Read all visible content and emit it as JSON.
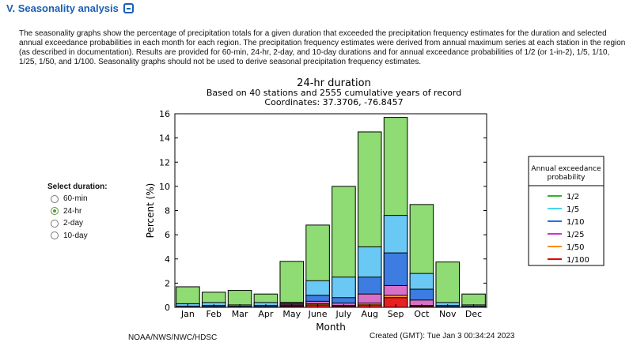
{
  "section": {
    "title": "V. Seasonality analysis"
  },
  "description": "The seasonality graphs show the percentage of precipitation totals for a given duration that exceeded the precipitation frequency estimates for the duration and selected annual exceedance probabilities in each month for each region. The precipitation frequency estimates were derived from annual maximum series at each station in the region (as described in documentation). Results are provided for 60-min, 24-hr, 2-day, and 10-day durations and for annual exceedance probabilities of 1/2 (or 1-in-2), 1/5, 1/10, 1/25, 1/50, and 1/100. Seasonality graphs should not be used to derive seasonal precipitation frequency estimates.",
  "duration_select": {
    "label": "Select duration:",
    "options": [
      "60-min",
      "24-hr",
      "2-day",
      "10-day"
    ],
    "selected": "24-hr"
  },
  "footer": {
    "left": "NOAA/NWS/NWC/HDSC",
    "right": "Created (GMT): Tue Jan  3 00:34:24 2023"
  },
  "chart_data": {
    "type": "bar",
    "title": "24-hr duration",
    "subtitle_lines": [
      "Based on 40 stations and 2555 cumulative years of record",
      "Coordinates: 37.3706, -76.8457"
    ],
    "xlabel": "Month",
    "ylabel": "Percent (%)",
    "ylim": [
      0,
      16
    ],
    "yticks": [
      0,
      2,
      4,
      6,
      8,
      10,
      12,
      14,
      16
    ],
    "categories": [
      "Jan",
      "Feb",
      "Mar",
      "Apr",
      "May",
      "June",
      "July",
      "Aug",
      "Sep",
      "Oct",
      "Nov",
      "Dec"
    ],
    "legend": {
      "title_lines": [
        "Annual exceedance",
        "probability"
      ],
      "placement": "right"
    },
    "series": [
      {
        "name": "1/2",
        "fill": "#8fdb74",
        "line": "#2db52d",
        "values": [
          1.7,
          1.25,
          1.4,
          1.1,
          3.8,
          6.8,
          10.0,
          14.5,
          15.7,
          8.5,
          3.75,
          1.1
        ]
      },
      {
        "name": "1/5",
        "fill": "#6ac8f5",
        "line": "#43d6f0",
        "values": [
          0.3,
          0.4,
          0.2,
          0.4,
          0.4,
          2.2,
          2.5,
          5.0,
          7.6,
          2.8,
          0.4,
          0.2
        ]
      },
      {
        "name": "1/10",
        "fill": "#3d7ce0",
        "line": "#2b6fe0",
        "values": [
          0.1,
          0.15,
          0.1,
          0.15,
          0.35,
          1.0,
          0.8,
          2.5,
          4.5,
          1.5,
          0.15,
          0.1
        ]
      },
      {
        "name": "1/25",
        "fill": "#d970c8",
        "line": "#cc33cc",
        "values": [
          0.0,
          0.05,
          0.0,
          0.05,
          0.25,
          0.5,
          0.35,
          1.1,
          1.8,
          0.6,
          0.05,
          0.0
        ]
      },
      {
        "name": "1/50",
        "fill": "#f59a2c",
        "line": "#ff8c00",
        "values": [
          0.0,
          0.0,
          0.0,
          0.0,
          0.15,
          0.3,
          0.15,
          0.35,
          1.0,
          0.15,
          0.0,
          0.0
        ]
      },
      {
        "name": "1/100",
        "fill": "#e82020",
        "line": "#e00000",
        "values": [
          0.0,
          0.0,
          0.0,
          0.0,
          0.1,
          0.2,
          0.1,
          0.2,
          0.8,
          0.1,
          0.0,
          0.0
        ]
      }
    ]
  }
}
